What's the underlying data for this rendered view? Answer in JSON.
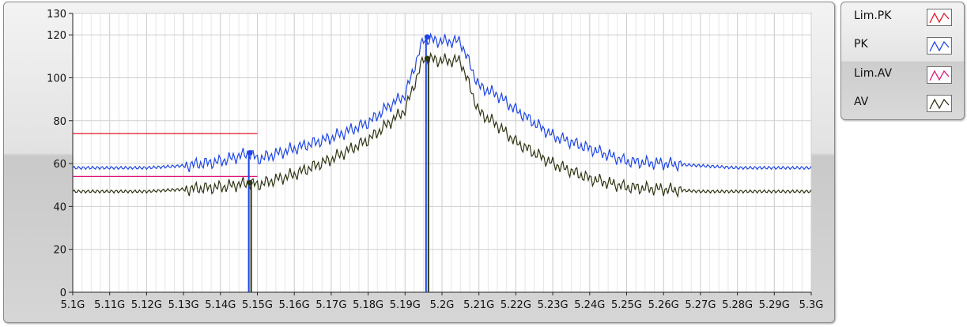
{
  "chart_data": {
    "type": "line",
    "title": "",
    "xlabel": "",
    "ylabel": "",
    "xlim": [
      5.1,
      5.3
    ],
    "ylim": [
      0,
      130
    ],
    "grid": true,
    "legend_position": "right",
    "x_ticks": [
      "5.1G",
      "5.11G",
      "5.12G",
      "5.13G",
      "5.14G",
      "5.15G",
      "5.16G",
      "5.17G",
      "5.18G",
      "5.19G",
      "5.2G",
      "5.21G",
      "5.22G",
      "5.23G",
      "5.24G",
      "5.25G",
      "5.26G",
      "5.27G",
      "5.28G",
      "5.29G",
      "5.3G"
    ],
    "y_ticks": [
      "0",
      "20",
      "40",
      "60",
      "80",
      "100",
      "120",
      "130"
    ],
    "series": [
      {
        "name": "Lim.PK",
        "color": "#e0141e",
        "x": [
          5.1,
          5.15
        ],
        "values": [
          74,
          74
        ]
      },
      {
        "name": "PK",
        "color": "#1e46e6",
        "x": [
          5.1,
          5.11,
          5.12,
          5.13,
          5.14,
          5.148,
          5.15,
          5.16,
          5.17,
          5.18,
          5.185,
          5.19,
          5.195,
          5.2,
          5.205,
          5.21,
          5.215,
          5.22,
          5.23,
          5.24,
          5.25,
          5.26,
          5.27,
          5.28,
          5.29,
          5.3
        ],
        "values": [
          58,
          58,
          58,
          59,
          61,
          65,
          62,
          67,
          72,
          79,
          86,
          92,
          118,
          117,
          117,
          96,
          92,
          85,
          73,
          67,
          61,
          60,
          59,
          58,
          58,
          58
        ]
      },
      {
        "name": "Lim.AV",
        "color": "#e0147c",
        "x": [
          5.1,
          5.15
        ],
        "values": [
          54,
          54
        ]
      },
      {
        "name": "AV",
        "color": "#2e3512",
        "x": [
          5.1,
          5.11,
          5.12,
          5.13,
          5.14,
          5.148,
          5.15,
          5.16,
          5.17,
          5.18,
          5.185,
          5.19,
          5.195,
          5.2,
          5.205,
          5.21,
          5.215,
          5.22,
          5.23,
          5.24,
          5.25,
          5.26,
          5.27,
          5.28,
          5.29,
          5.3
        ],
        "values": [
          47,
          47,
          47,
          48,
          49,
          51,
          50,
          55,
          62,
          71,
          78,
          85,
          109,
          108,
          108,
          84,
          78,
          70,
          60,
          53,
          49,
          48,
          47,
          47,
          47,
          47
        ]
      }
    ],
    "markers": [
      {
        "series": "PK",
        "x": 5.148,
        "y": 65,
        "color": "#1e46e6"
      },
      {
        "series": "AV",
        "x": 5.148,
        "y": 51,
        "color": "#2e3512"
      },
      {
        "series": "PK",
        "x": 5.196,
        "y": 119,
        "color": "#1e46e6"
      },
      {
        "series": "AV",
        "x": 5.196,
        "y": 109,
        "color": "#2e3512"
      }
    ]
  }
}
